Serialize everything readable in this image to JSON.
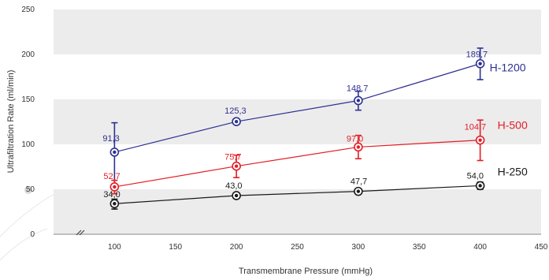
{
  "chart_data": {
    "type": "line",
    "xlabel": "Transmembrane Pressure (mmHg)",
    "ylabel": "Ultrafiltration Rate (ml/min)",
    "xlim": [
      50,
      450
    ],
    "ylim": [
      0,
      250
    ],
    "x_ticks": [
      "100",
      "150",
      "200",
      "250",
      "300",
      "350",
      "400",
      "450"
    ],
    "y_ticks": [
      "0",
      "50",
      "100",
      "150",
      "200",
      "250"
    ],
    "grid": "alternating horizontal bands",
    "axis_break": true,
    "x": [
      100,
      200,
      300,
      400
    ],
    "series": [
      {
        "name": "H-1200",
        "color": "#2e3192",
        "values": [
          91.3,
          125.3,
          148.7,
          189.7
        ],
        "labels": [
          "91,3",
          "125,3",
          "148,7",
          "189,7"
        ],
        "err_low": [
          50,
          123,
          138,
          172
        ],
        "err_high": [
          124,
          128,
          159,
          207
        ]
      },
      {
        "name": "H-500",
        "color": "#e31e26",
        "values": [
          52.7,
          75.7,
          97.0,
          104.7
        ],
        "labels": [
          "52,7",
          "75,7",
          "97,0",
          "104,7"
        ],
        "err_low": [
          45,
          63,
          84,
          82
        ],
        "err_high": [
          60,
          88,
          110,
          127
        ]
      },
      {
        "name": "H-250",
        "color": "#1a1a1a",
        "values": [
          34.0,
          43.0,
          47.7,
          54.0
        ],
        "labels": [
          "34,0",
          "43,0",
          "47,7",
          "54,0"
        ],
        "err_low": [
          28,
          40,
          45,
          50
        ],
        "err_high": [
          39,
          46,
          50,
          58
        ]
      }
    ]
  }
}
